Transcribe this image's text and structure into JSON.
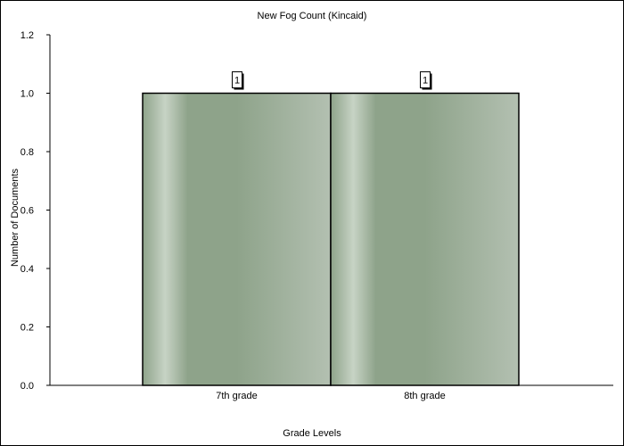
{
  "chart_data": {
    "type": "bar",
    "title": "New Fog Count (Kincaid)",
    "xlabel": "Grade Levels",
    "ylabel": "Number of Documents",
    "categories": [
      "7th grade",
      "8th grade"
    ],
    "values": [
      1,
      1
    ],
    "data_labels": [
      "1",
      "1"
    ],
    "ylim": [
      0,
      1.2
    ],
    "yticks": [
      "0.0",
      "0.2",
      "0.4",
      "0.6",
      "0.8",
      "1.0",
      "1.2"
    ],
    "grid": false,
    "legend": "none",
    "colors": {
      "bar_dark": "#8ea38a",
      "bar_light": "#c7d3c5",
      "bar_end": "#b3c0b1",
      "outline": "#000000"
    }
  }
}
